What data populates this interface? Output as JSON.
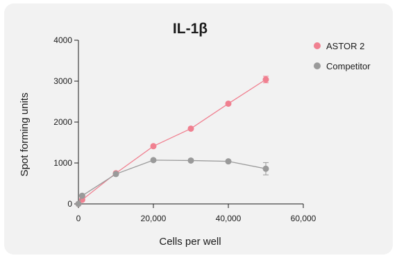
{
  "chart_data": {
    "type": "line",
    "title": "IL-1β",
    "xlabel": "Cells per well",
    "ylabel": "Spot forming units",
    "xlim": [
      0,
      60000
    ],
    "ylim": [
      0,
      4000
    ],
    "x_ticks": [
      0,
      20000,
      40000,
      60000
    ],
    "x_tick_labels": [
      "0",
      "20,000",
      "40,000",
      "60,000"
    ],
    "y_ticks": [
      0,
      1000,
      2000,
      3000,
      4000
    ],
    "y_tick_labels": [
      "0",
      "1000",
      "2000",
      "3000",
      "4000"
    ],
    "legend_position": "top-right",
    "grid": false,
    "series": [
      {
        "name": "ASTOR 2",
        "color": "#f08090",
        "x": [
          0,
          1000,
          10000,
          20000,
          30000,
          40000,
          50000
        ],
        "y": [
          0,
          100,
          750,
          1410,
          1840,
          2450,
          3040
        ],
        "err": [
          0,
          20,
          30,
          30,
          30,
          30,
          80
        ]
      },
      {
        "name": "Competitor",
        "color": "#9a9a9a",
        "x": [
          0,
          1000,
          10000,
          20000,
          30000,
          40000,
          50000
        ],
        "y": [
          0,
          200,
          730,
          1070,
          1060,
          1040,
          860
        ],
        "err": [
          0,
          20,
          30,
          30,
          30,
          30,
          150
        ]
      }
    ]
  }
}
